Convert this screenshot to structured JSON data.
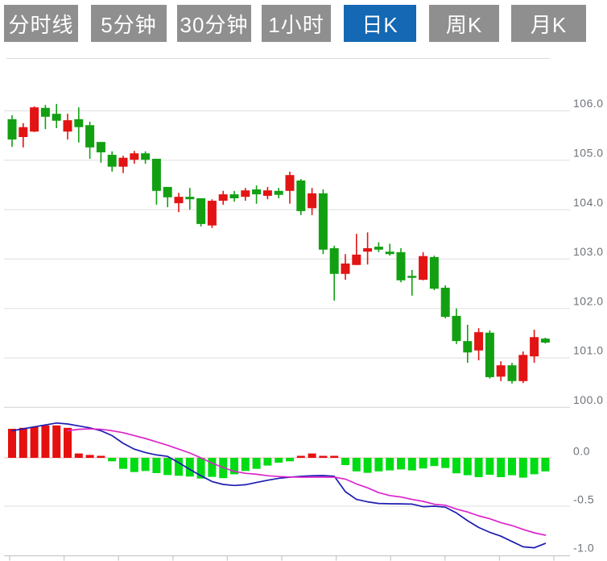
{
  "toolbar": {
    "buttons": [
      {
        "label": "分时线",
        "active": false
      },
      {
        "label": "5分钟",
        "active": false
      },
      {
        "label": "30分钟",
        "active": false
      },
      {
        "label": "1小时",
        "active": false
      },
      {
        "label": "日K",
        "active": true
      },
      {
        "label": "周K",
        "active": false
      },
      {
        "label": "月K",
        "active": false
      }
    ]
  },
  "colors": {
    "button_gray": "#8f8f8f",
    "button_active_blue": "#1568b3",
    "candle_up_red": "#e21414",
    "candle_down_green": "#12a012",
    "macd_up_red": "#e60f0f",
    "macd_down_green": "#00dc14",
    "dif_line_blue": "#1c1cb2",
    "dea_line_magenta": "#dc25cc",
    "grid": "#e4e4e4",
    "axis_line": "#c9c9c9",
    "zero_line": "#f0bcbc",
    "label_gray": "#6f7378"
  },
  "chart_data": {
    "type": "candlestick+macd",
    "title": "",
    "price_axis": {
      "tick_labels": [
        "106.0",
        "105.0",
        "104.0",
        "103.0",
        "102.0",
        "101.0",
        "100.0"
      ],
      "tick_values": [
        106,
        105,
        104,
        103,
        102,
        101,
        100
      ],
      "range": [
        99.7,
        106.6
      ],
      "grid": true,
      "position": "right"
    },
    "macd_axis": {
      "tick_labels": [
        "0.0",
        "-0.5",
        "-1.0"
      ],
      "tick_values": [
        0,
        -0.5,
        -1
      ],
      "range": [
        -1.05,
        0.45
      ],
      "position": "right"
    },
    "candles_ohlc": [
      [
        105.83,
        105.91,
        105.27,
        105.42
      ],
      [
        105.47,
        105.75,
        105.26,
        105.67
      ],
      [
        105.58,
        106.09,
        105.57,
        106.07
      ],
      [
        106.06,
        106.12,
        105.63,
        105.88
      ],
      [
        105.94,
        106.14,
        105.65,
        105.8
      ],
      [
        105.58,
        105.94,
        105.42,
        105.81
      ],
      [
        105.83,
        106.07,
        105.36,
        105.67
      ],
      [
        105.71,
        105.78,
        105.03,
        105.26
      ],
      [
        105.37,
        105.37,
        104.95,
        105.16
      ],
      [
        105.11,
        105.18,
        104.77,
        104.87
      ],
      [
        104.87,
        105.09,
        104.74,
        105.05
      ],
      [
        105.01,
        105.19,
        104.93,
        105.14
      ],
      [
        105.14,
        105.18,
        104.93,
        105.01
      ],
      [
        105.03,
        105.03,
        104.1,
        104.38
      ],
      [
        104.46,
        104.46,
        104.05,
        104.25
      ],
      [
        104.13,
        104.34,
        103.95,
        104.26
      ],
      [
        104.26,
        104.44,
        104.0,
        104.21
      ],
      [
        104.23,
        104.23,
        103.66,
        103.71
      ],
      [
        103.68,
        104.21,
        103.63,
        104.18
      ],
      [
        104.18,
        104.38,
        104.1,
        104.31
      ],
      [
        104.31,
        104.38,
        104.16,
        104.23
      ],
      [
        104.26,
        104.44,
        104.18,
        104.39
      ],
      [
        104.41,
        104.49,
        104.12,
        104.31
      ],
      [
        104.28,
        104.46,
        104.21,
        104.39
      ],
      [
        104.38,
        104.44,
        104.23,
        104.3
      ],
      [
        104.38,
        104.77,
        104.12,
        104.7
      ],
      [
        104.59,
        104.62,
        103.89,
        103.97
      ],
      [
        104.03,
        104.44,
        103.89,
        104.33
      ],
      [
        104.33,
        104.41,
        103.1,
        103.19
      ],
      [
        103.22,
        103.27,
        102.16,
        102.7
      ],
      [
        102.7,
        103.1,
        102.58,
        102.91
      ],
      [
        102.88,
        103.51,
        102.88,
        103.09
      ],
      [
        103.15,
        103.54,
        102.89,
        103.22
      ],
      [
        103.25,
        103.34,
        103.14,
        103.19
      ],
      [
        103.15,
        103.31,
        103.07,
        103.1
      ],
      [
        103.14,
        103.22,
        102.53,
        102.57
      ],
      [
        102.66,
        102.78,
        102.26,
        102.62
      ],
      [
        102.58,
        103.14,
        102.57,
        103.06
      ],
      [
        103.04,
        103.07,
        102.37,
        102.4
      ],
      [
        102.42,
        102.47,
        101.8,
        101.83
      ],
      [
        101.85,
        102.0,
        101.28,
        101.34
      ],
      [
        101.34,
        101.67,
        100.9,
        101.11
      ],
      [
        101.15,
        101.6,
        100.95,
        101.52
      ],
      [
        101.51,
        101.56,
        100.58,
        100.61
      ],
      [
        100.62,
        100.93,
        100.53,
        100.85
      ],
      [
        100.85,
        100.9,
        100.48,
        100.53
      ],
      [
        100.53,
        101.13,
        100.49,
        101.06
      ],
      [
        101.03,
        101.57,
        100.9,
        101.42
      ],
      [
        101.39,
        101.41,
        101.29,
        101.31
      ]
    ],
    "macd": {
      "histogram": [
        0.3,
        0.31,
        0.32,
        0.335,
        0.335,
        0.31,
        0.045,
        0.03,
        0.015,
        -0.036,
        -0.114,
        -0.147,
        -0.136,
        -0.158,
        -0.178,
        -0.186,
        -0.194,
        -0.214,
        -0.197,
        -0.21,
        -0.17,
        -0.136,
        -0.114,
        -0.08,
        -0.05,
        -0.036,
        0.02,
        0.045,
        0.005,
        0.02,
        -0.075,
        -0.14,
        -0.155,
        -0.14,
        -0.13,
        -0.12,
        -0.13,
        -0.11,
        -0.085,
        -0.105,
        -0.16,
        -0.18,
        -0.2,
        -0.175,
        -0.2,
        -0.18,
        -0.205,
        -0.17,
        -0.14
      ],
      "dif": [
        0.28,
        0.3,
        0.32,
        0.34,
        0.36,
        0.35,
        0.33,
        0.31,
        0.28,
        0.23,
        0.15,
        0.09,
        0.055,
        0.03,
        0.015,
        -0.05,
        -0.12,
        -0.185,
        -0.245,
        -0.275,
        -0.286,
        -0.278,
        -0.255,
        -0.232,
        -0.212,
        -0.2,
        -0.192,
        -0.185,
        -0.183,
        -0.19,
        -0.35,
        -0.43,
        -0.455,
        -0.472,
        -0.475,
        -0.476,
        -0.478,
        -0.505,
        -0.5,
        -0.51,
        -0.57,
        -0.65,
        -0.72,
        -0.77,
        -0.81,
        -0.865,
        -0.92,
        -0.93,
        -0.885
      ],
      "dea": [
        null,
        null,
        null,
        null,
        null,
        0.28,
        0.295,
        0.3,
        0.295,
        0.28,
        0.26,
        0.23,
        0.2,
        0.165,
        0.13,
        0.09,
        0.05,
        0.0,
        -0.055,
        -0.1,
        -0.14,
        -0.16,
        -0.17,
        -0.185,
        -0.193,
        -0.198,
        -0.2,
        -0.2,
        -0.2,
        -0.2,
        -0.22,
        -0.27,
        -0.31,
        -0.36,
        -0.39,
        -0.405,
        -0.43,
        -0.45,
        -0.48,
        -0.49,
        -0.53,
        -0.56,
        -0.6,
        -0.63,
        -0.67,
        -0.7,
        -0.74,
        -0.775,
        -0.8
      ]
    },
    "legend": null,
    "x_tick_labels": []
  }
}
